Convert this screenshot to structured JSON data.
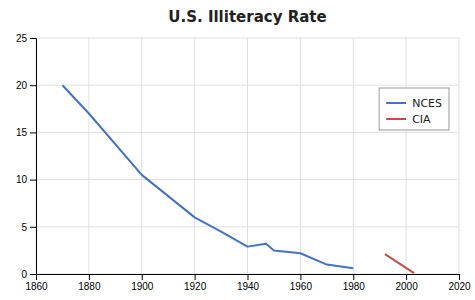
{
  "chart_data": {
    "type": "line",
    "title": "U.S. Illiteracy Rate",
    "series": [
      {
        "name": "NCES",
        "color": "#4472C4",
        "x": [
          1870,
          1880,
          1900,
          1920,
          1930,
          1940,
          1947,
          1950,
          1960,
          1970,
          1980
        ],
        "values": [
          20.0,
          17.0,
          10.5,
          6.0,
          4.5,
          2.9,
          3.2,
          2.5,
          2.2,
          1.0,
          0.6
        ]
      },
      {
        "name": "CIA",
        "color": "#C0504D",
        "x": [
          1992,
          2003
        ],
        "values": [
          2.1,
          0.1
        ]
      }
    ],
    "xlim": [
      1860,
      2020
    ],
    "ylim": [
      0,
      25
    ],
    "xticks": [
      1860,
      1880,
      1900,
      1920,
      1940,
      1960,
      1980,
      2000,
      2020
    ],
    "yticks": [
      0,
      5,
      10,
      15,
      20,
      25
    ],
    "grid": true,
    "legend": "upper right"
  }
}
